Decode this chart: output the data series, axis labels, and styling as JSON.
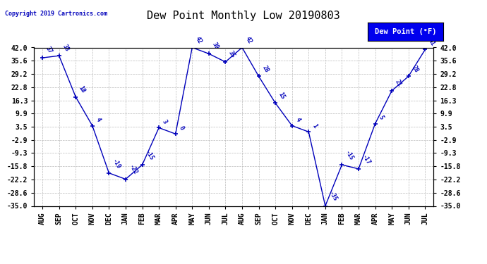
{
  "title": "Dew Point Monthly Low 20190803",
  "copyright": "Copyright 2019 Cartronics.com",
  "legend_label": "Dew Point (°F)",
  "months": [
    "AUG",
    "SEP",
    "OCT",
    "NOV",
    "DEC",
    "JAN",
    "FEB",
    "MAR",
    "APR",
    "MAY",
    "JUN",
    "JUL",
    "AUG",
    "SEP",
    "OCT",
    "NOV",
    "DEC",
    "JAN",
    "FEB",
    "MAR",
    "APR",
    "MAY",
    "JUN",
    "JUL"
  ],
  "values": [
    37,
    38,
    18,
    4,
    -19,
    -22,
    -15,
    3,
    0,
    42,
    39,
    35,
    42,
    28,
    15,
    4,
    1,
    -35,
    -15,
    -17,
    5,
    21,
    28,
    41
  ],
  "ylim_min": -35,
  "ylim_max": 42,
  "yticks": [
    42.0,
    35.6,
    29.2,
    22.8,
    16.3,
    9.9,
    3.5,
    -2.9,
    -9.3,
    -15.8,
    -22.2,
    -28.6,
    -35.0
  ],
  "line_color": "#0000BB",
  "marker_color": "#0000BB",
  "grid_color": "#BBBBBB",
  "plot_bg_color": "#FFFFFF",
  "border_color": "#000000",
  "legend_bg": "#0000EE",
  "legend_text_color": "#FFFFFF",
  "title_color": "#000000",
  "label_color": "#0000BB",
  "copyright_color": "#0000BB",
  "title_fontsize": 11,
  "tick_fontsize": 7,
  "label_fontsize": 6,
  "copyright_fontsize": 6
}
